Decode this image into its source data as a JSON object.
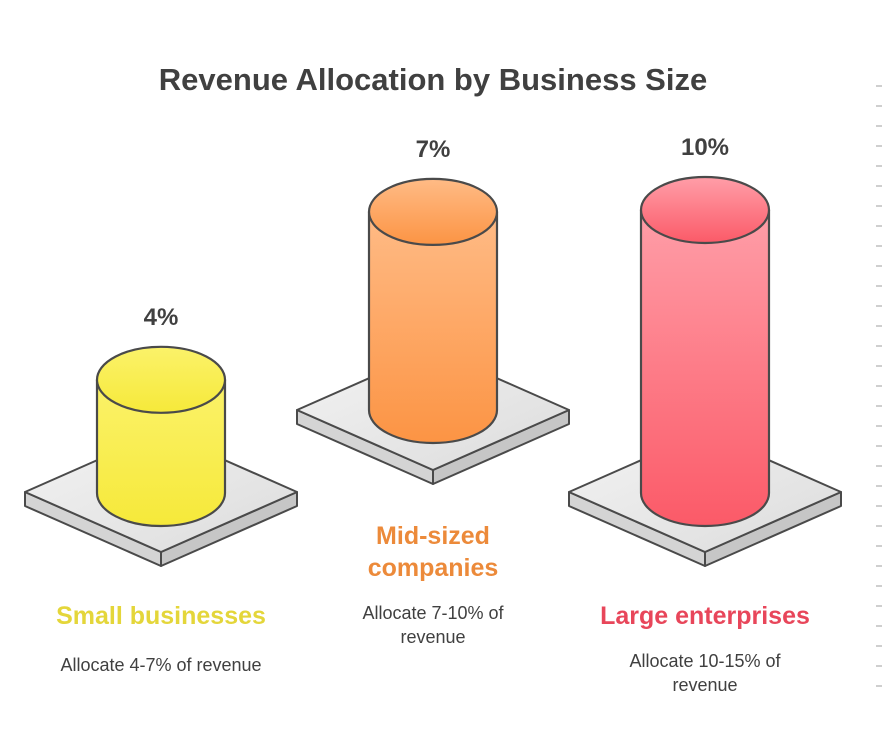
{
  "chart_data": {
    "type": "bar",
    "title": "Revenue Allocation by Business Size",
    "categories": [
      "Small businesses",
      "Mid-sized companies",
      "Large enterprises"
    ],
    "values": [
      4,
      7,
      10
    ],
    "value_labels": [
      "4%",
      "7%",
      "10%"
    ],
    "descriptions": [
      "Allocate 4-7% of revenue",
      "Allocate 7-10% of revenue",
      "Allocate 10-15% of revenue"
    ],
    "colors": [
      "#e4d63a",
      "#ec8a3a",
      "#e8465a"
    ]
  },
  "labels": {
    "small_name": "Small businesses",
    "mid_name_line1": "Mid-sized",
    "mid_name_line2": "companies",
    "large_name": "Large enterprises",
    "small_desc": "Allocate 4-7% of revenue",
    "mid_desc_line1": "Allocate 7-10% of",
    "mid_desc_line2": "revenue",
    "large_desc_line1": "Allocate 10-15% of",
    "large_desc_line2": "revenue"
  }
}
